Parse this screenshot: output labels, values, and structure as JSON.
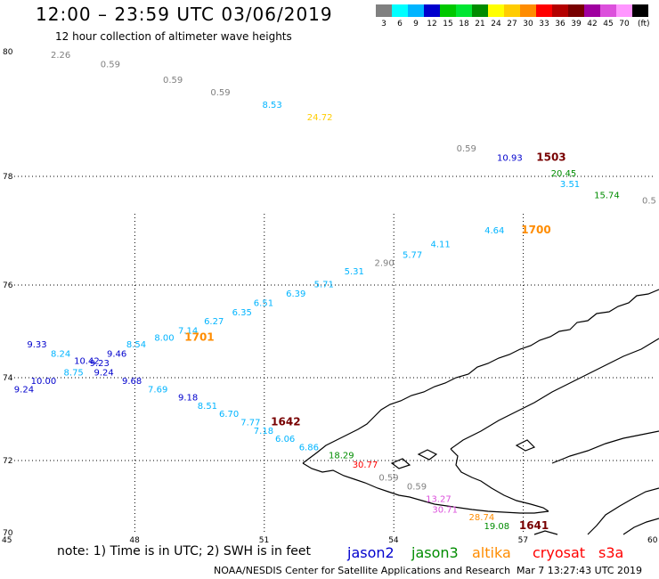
{
  "header": {
    "title": "12:00 – 23:59 UTC 03/06/2019",
    "subtitle": "12 hour collection of altimeter wave heights"
  },
  "legend": {
    "unit": "(ft)",
    "items": [
      {
        "label": "3",
        "color": "#808080"
      },
      {
        "label": "6",
        "color": "#00ffff"
      },
      {
        "label": "9",
        "color": "#00b4ff"
      },
      {
        "label": "12",
        "color": "#0000cd"
      },
      {
        "label": "15",
        "color": "#00c800"
      },
      {
        "label": "18",
        "color": "#00e632"
      },
      {
        "label": "21",
        "color": "#008c00"
      },
      {
        "label": "24",
        "color": "#ffff00"
      },
      {
        "label": "27",
        "color": "#ffcc00"
      },
      {
        "label": "30",
        "color": "#ff8c00"
      },
      {
        "label": "33",
        "color": "#ff0000"
      },
      {
        "label": "36",
        "color": "#b40000"
      },
      {
        "label": "39",
        "color": "#780000"
      },
      {
        "label": "42",
        "color": "#a000a0"
      },
      {
        "label": "45",
        "color": "#dc50dc"
      },
      {
        "label": "70",
        "color": "#ff96ff"
      },
      {
        "label": "",
        "color": "#000000"
      }
    ]
  },
  "axes": {
    "lat_labels": [
      "80",
      "78",
      "76",
      "74",
      "72",
      "70"
    ],
    "lon_labels": [
      "45",
      "48",
      "51",
      "54",
      "57",
      "60"
    ]
  },
  "observations": [
    {
      "v": "2.26",
      "c": "#808080",
      "lon": 46.3,
      "lat": 79.9
    },
    {
      "v": "0.59",
      "c": "#808080",
      "lon": 47.45,
      "lat": 79.75
    },
    {
      "v": "0.59",
      "c": "#808080",
      "lon": 48.9,
      "lat": 79.5
    },
    {
      "v": "0.59",
      "c": "#808080",
      "lon": 50.0,
      "lat": 79.3
    },
    {
      "v": "8.53",
      "c": "#00b4ff",
      "lon": 51.2,
      "lat": 79.1
    },
    {
      "v": "24.72",
      "c": "#ffcc00",
      "lon": 52.3,
      "lat": 78.9
    },
    {
      "v": "0.59",
      "c": "#808080",
      "lon": 55.7,
      "lat": 78.4
    },
    {
      "v": "10.93",
      "c": "#0000cd",
      "lon": 56.7,
      "lat": 78.25
    },
    {
      "v": "1503",
      "c": "#780000",
      "lon": 57.55,
      "lat": 78.25,
      "bold": true
    },
    {
      "v": "20.45",
      "c": "#008c00",
      "lon": 57.95,
      "lat": 78.0
    },
    {
      "v": "3.51",
      "c": "#00b4ff",
      "lon": 58.1,
      "lat": 77.8
    },
    {
      "v": "15.74",
      "c": "#008c00",
      "lon": 58.95,
      "lat": 77.6
    },
    {
      "v": "0.5",
      "c": "#808080",
      "lon": 59.95,
      "lat": 77.5
    },
    {
      "v": "4.64",
      "c": "#00b4ff",
      "lon": 56.35,
      "lat": 76.95
    },
    {
      "v": "1700",
      "c": "#ff8c00",
      "lon": 57.2,
      "lat": 76.95,
      "bold": true
    },
    {
      "v": "4.11",
      "c": "#00b4ff",
      "lon": 55.1,
      "lat": 76.7
    },
    {
      "v": "5.77",
      "c": "#00b4ff",
      "lon": 54.45,
      "lat": 76.5
    },
    {
      "v": "2.90",
      "c": "#808080",
      "lon": 53.8,
      "lat": 76.35
    },
    {
      "v": "5.31",
      "c": "#00b4ff",
      "lon": 53.1,
      "lat": 76.2
    },
    {
      "v": "5.71",
      "c": "#00b4ff",
      "lon": 52.4,
      "lat": 75.95
    },
    {
      "v": "6.39",
      "c": "#00b4ff",
      "lon": 51.75,
      "lat": 75.75
    },
    {
      "v": "6.51",
      "c": "#00b4ff",
      "lon": 51.0,
      "lat": 75.55
    },
    {
      "v": "6.35",
      "c": "#00b4ff",
      "lon": 50.5,
      "lat": 75.35
    },
    {
      "v": "6.27",
      "c": "#00b4ff",
      "lon": 49.85,
      "lat": 75.15
    },
    {
      "v": "7.14",
      "c": "#00b4ff",
      "lon": 49.25,
      "lat": 74.95
    },
    {
      "v": "8.00",
      "c": "#00b4ff",
      "lon": 48.7,
      "lat": 74.8
    },
    {
      "v": "1701",
      "c": "#ff8c00",
      "lon": 49.4,
      "lat": 74.8,
      "bold": true
    },
    {
      "v": "8.54",
      "c": "#00b4ff",
      "lon": 48.05,
      "lat": 74.65
    },
    {
      "v": "9.33",
      "c": "#0000cd",
      "lon": 45.75,
      "lat": 74.65
    },
    {
      "v": "8.24",
      "c": "#00b4ff",
      "lon": 46.3,
      "lat": 74.45
    },
    {
      "v": "9.46",
      "c": "#0000cd",
      "lon": 47.6,
      "lat": 74.45
    },
    {
      "v": "10.42",
      "c": "#0000cd",
      "lon": 46.9,
      "lat": 74.3
    },
    {
      "v": "9.23",
      "c": "#0000cd",
      "lon": 47.2,
      "lat": 74.25
    },
    {
      "v": "8.75",
      "c": "#00b4ff",
      "lon": 46.6,
      "lat": 74.05
    },
    {
      "v": "9.24",
      "c": "#0000cd",
      "lon": 47.3,
      "lat": 74.05
    },
    {
      "v": "9.68",
      "c": "#0000cd",
      "lon": 47.95,
      "lat": 73.85
    },
    {
      "v": "10.00",
      "c": "#0000cd",
      "lon": 45.9,
      "lat": 73.85
    },
    {
      "v": "9.24",
      "c": "#0000cd",
      "lon": 45.45,
      "lat": 73.65
    },
    {
      "v": "7.69",
      "c": "#00b4ff",
      "lon": 48.55,
      "lat": 73.65
    },
    {
      "v": "9.18",
      "c": "#0000cd",
      "lon": 49.25,
      "lat": 73.45
    },
    {
      "v": "8.51",
      "c": "#00b4ff",
      "lon": 49.7,
      "lat": 73.25
    },
    {
      "v": "6.70",
      "c": "#00b4ff",
      "lon": 50.2,
      "lat": 73.05
    },
    {
      "v": "7.77",
      "c": "#00b4ff",
      "lon": 50.7,
      "lat": 72.85
    },
    {
      "v": "1642",
      "c": "#780000",
      "lon": 51.4,
      "lat": 72.85,
      "bold": true
    },
    {
      "v": "7.18",
      "c": "#00b4ff",
      "lon": 51.0,
      "lat": 72.65
    },
    {
      "v": "6.06",
      "c": "#00b4ff",
      "lon": 51.5,
      "lat": 72.45
    },
    {
      "v": "6.86",
      "c": "#00b4ff",
      "lon": 52.05,
      "lat": 72.25
    },
    {
      "v": "18.29",
      "c": "#008c00",
      "lon": 52.8,
      "lat": 72.05
    },
    {
      "v": "30.77",
      "c": "#ff0000",
      "lon": 53.35,
      "lat": 71.8
    },
    {
      "v": "0.59",
      "c": "#808080",
      "lon": 53.9,
      "lat": 71.45
    },
    {
      "v": "0.59",
      "c": "#808080",
      "lon": 54.55,
      "lat": 71.2
    },
    {
      "v": "13.27",
      "c": "#dc50dc",
      "lon": 55.05,
      "lat": 70.85
    },
    {
      "v": "30.71",
      "c": "#dc50dc",
      "lon": 55.2,
      "lat": 70.55
    },
    {
      "v": "28.74",
      "c": "#ff8c00",
      "lon": 56.05,
      "lat": 70.35
    },
    {
      "v": "19.08",
      "c": "#008c00",
      "lon": 56.4,
      "lat": 70.1
    },
    {
      "v": "1641",
      "c": "#780000",
      "lon": 57.15,
      "lat": 70.1,
      "bold": true
    }
  ],
  "footer": {
    "note": "note:  1) Time is in UTC;  2) SWH is in feet",
    "satellites": [
      {
        "name": "jason2",
        "color": "#0000cd"
      },
      {
        "name": "jason3",
        "color": "#008c00"
      },
      {
        "name": "altika",
        "color": "#ff8c00"
      },
      {
        "name": "cryosat",
        "color": "#ff0000"
      },
      {
        "name": "s3a",
        "color": "#ff0000"
      }
    ],
    "credit": "NOAA/NESDIS Center for Satellite Applications and Research",
    "timestamp": "Mar  7 13:27:43 UTC 2019"
  }
}
